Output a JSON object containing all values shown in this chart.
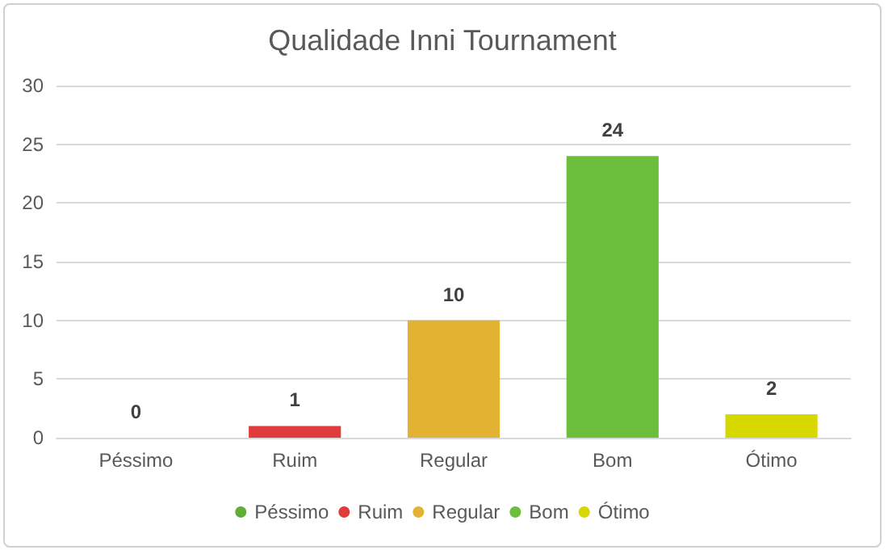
{
  "chart_data": {
    "type": "bar",
    "title": "Qualidade Inni Tournament",
    "categories": [
      "Péssimo",
      "Ruim",
      "Regular",
      "Bom",
      "Ótimo"
    ],
    "series": [
      {
        "name": "Péssimo",
        "color": "#5fae3a",
        "values": [
          0,
          null,
          null,
          null,
          null
        ]
      },
      {
        "name": "Ruim",
        "color": "#e03c3c",
        "values": [
          null,
          1,
          null,
          null,
          null
        ]
      },
      {
        "name": "Regular",
        "color": "#e2b232",
        "values": [
          null,
          null,
          10,
          null,
          null
        ]
      },
      {
        "name": "Bom",
        "color": "#6cbf3c",
        "values": [
          null,
          null,
          null,
          24,
          null
        ]
      },
      {
        "name": "Ótimo",
        "color": "#d8d800",
        "values": [
          null,
          null,
          null,
          null,
          2
        ]
      }
    ],
    "stacked": true,
    "ylim": [
      0,
      30
    ],
    "yticks": [
      0,
      5,
      10,
      15,
      20,
      25,
      30
    ],
    "grid": "y",
    "legend": "bottom",
    "data_labels": true
  }
}
